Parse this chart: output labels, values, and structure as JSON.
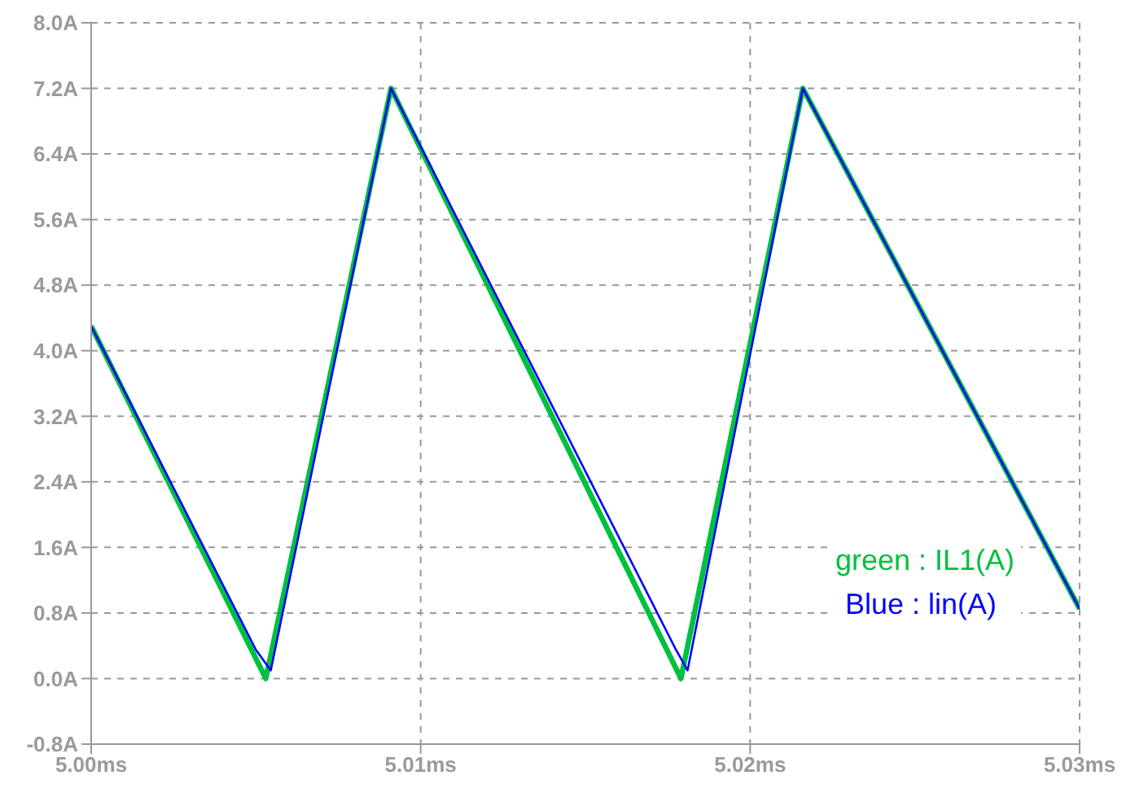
{
  "chart_data": {
    "type": "line",
    "xlim": [
      5.0,
      5.03
    ],
    "xticks": [
      {
        "value": 5.0,
        "label": "5.00ms"
      },
      {
        "value": 5.01,
        "label": "5.01ms"
      },
      {
        "value": 5.02,
        "label": "5.02ms"
      },
      {
        "value": 5.03,
        "label": "5.03ms"
      }
    ],
    "ylim": [
      -0.8,
      8.0
    ],
    "yticks": [
      {
        "value": -0.8,
        "label": "-0.8A"
      },
      {
        "value": 0,
        "label": "0.0A"
      },
      {
        "value": 0.8,
        "label": "0.8A"
      },
      {
        "value": 1.6,
        "label": "1.6A"
      },
      {
        "value": 2.4,
        "label": "2.4A"
      },
      {
        "value": 3.2,
        "label": "3.2A"
      },
      {
        "value": 4.0,
        "label": "4.0A"
      },
      {
        "value": 4.8,
        "label": "4.8A"
      },
      {
        "value": 5.6,
        "label": "5.6A"
      },
      {
        "value": 6.4,
        "label": "6.4A"
      },
      {
        "value": 7.2,
        "label": "7.2A"
      },
      {
        "value": 8.0,
        "label": "8.0A"
      }
    ],
    "grid": true,
    "legend": "bottom right",
    "marker": "none",
    "line_style": "solid",
    "series": [
      {
        "name": "green : IL1(A)",
        "color": "#00c040",
        "x": [
          5.0,
          5.0053,
          5.0091,
          5.0179,
          5.0216,
          5.03
        ],
        "values": [
          4.3,
          0.0,
          7.2,
          0.0,
          7.2,
          0.85
        ]
      },
      {
        "name": "Blue : lin(A)",
        "color": "#0000ff",
        "x": [
          5.0,
          5.005,
          5.00545,
          5.0091,
          5.01775,
          5.0181,
          5.0216,
          5.03
        ],
        "values": [
          4.3,
          0.35,
          0.1,
          7.2,
          0.35,
          0.1,
          7.2,
          0.85
        ]
      }
    ]
  }
}
